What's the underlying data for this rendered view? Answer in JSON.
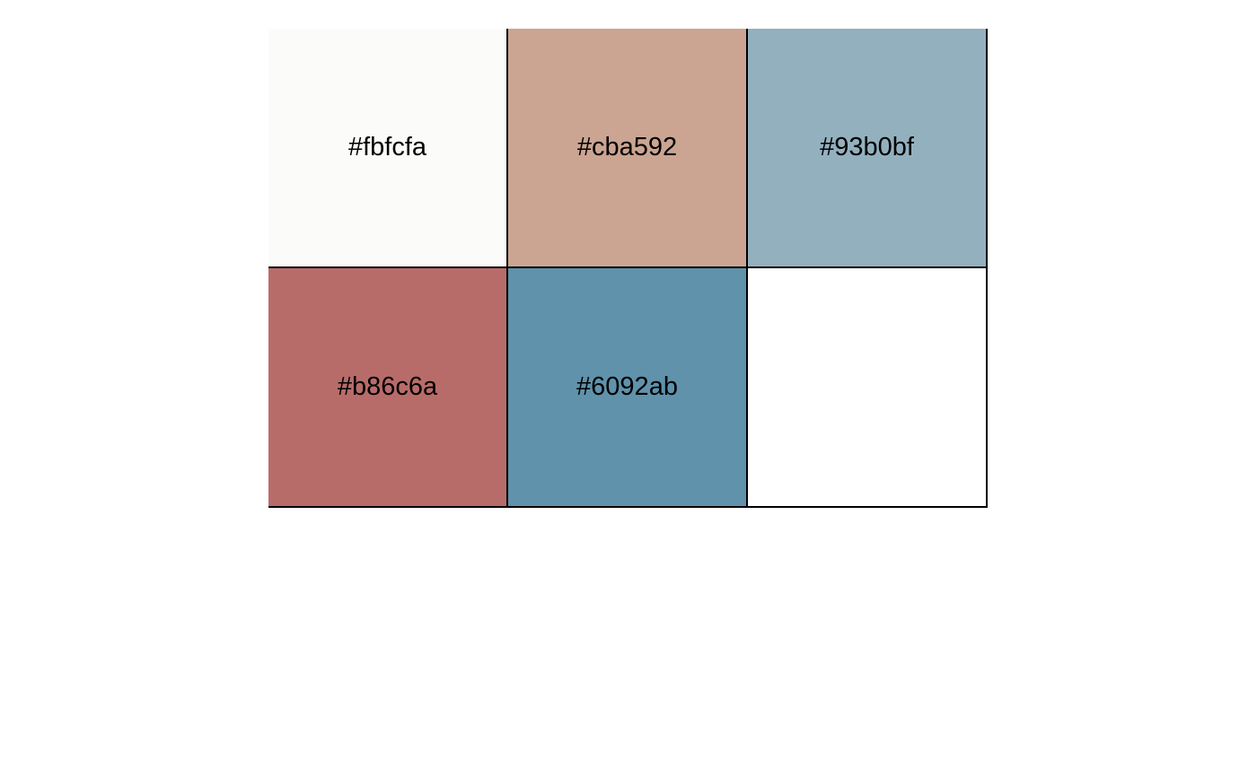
{
  "palette": {
    "swatches": [
      {
        "label": "#fbfcfa",
        "color": "#fbfcfa"
      },
      {
        "label": "#cba592",
        "color": "#cba592"
      },
      {
        "label": "#93b0bf",
        "color": "#93b0bf"
      },
      {
        "label": "#b86c6a",
        "color": "#b86c6a"
      },
      {
        "label": "#6092ab",
        "color": "#6092ab"
      },
      {
        "label": "",
        "color": "#ffffff"
      }
    ]
  }
}
